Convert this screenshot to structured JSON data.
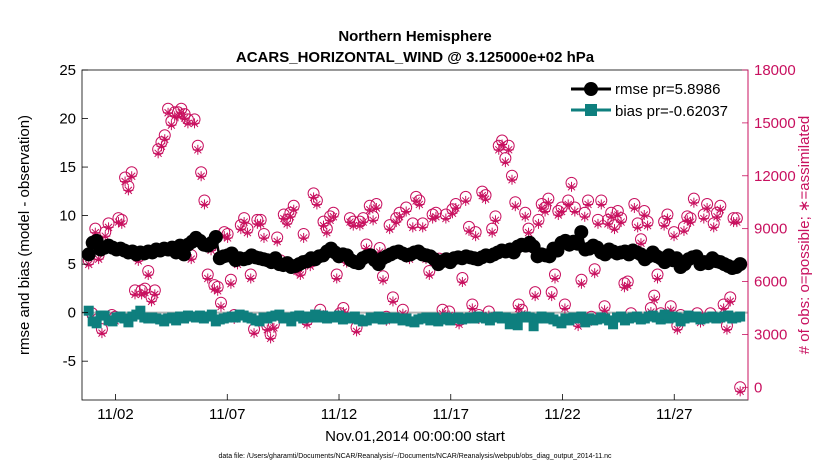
{
  "chart_data": {
    "type": "line",
    "title": "Northern Hemisphere",
    "subtitle": "ACARS_HORIZONTAL_WIND @ 3.125000e+02 hPa",
    "xlabel": "Nov.01,2014 00:00:00 start",
    "ylabel": "rmse and bias (model - observation)",
    "ylabel_right": "# of obs: o=possible; ∗=assimilated",
    "footer": "data file: /Users/gharamti/Documents/NCAR/Reanalysis/~/Documents/NCAR/Reanalysis/webpub/obs_diag_output_2014-11.nc",
    "xlim": [
      0.5,
      30.3
    ],
    "ylim": [
      -9,
      25
    ],
    "ylim_right": [
      -720,
      18000
    ],
    "x_ticks": [
      2,
      7,
      12,
      17,
      22,
      27
    ],
    "x_tick_labels": [
      "11/02",
      "11/07",
      "11/12",
      "11/17",
      "11/22",
      "11/27"
    ],
    "y_ticks": [
      -5,
      0,
      5,
      10,
      15,
      20,
      25
    ],
    "y_tick_labels": [
      "-5",
      "0",
      "5",
      "10",
      "15",
      "20",
      "25"
    ],
    "y_ticks_right": [
      0,
      3000,
      6000,
      9000,
      12000,
      15000,
      18000
    ],
    "y_tick_labels_right": [
      "0",
      "3000",
      "6000",
      "9000",
      "12000",
      "15000",
      "18000"
    ],
    "legend": [
      "rmse pr=5.8986",
      "bias pr=-0.62037"
    ],
    "colors": {
      "rmse": "#000000",
      "bias": "#0e7f7e",
      "obs": "#c8105f",
      "zero_line": "#b4b4b4"
    },
    "series": [
      {
        "name": "rmse pr=5.8986",
        "values": [
          6.0,
          7.2,
          7.4,
          6.5,
          6.7,
          6.9,
          6.7,
          6.5,
          6.6,
          6.4,
          6.2,
          6.3,
          6.0,
          6.2,
          6.1,
          6.3,
          6.2,
          6.5,
          6.4,
          6.6,
          6.5,
          6.7,
          6.2,
          6.9,
          6.0,
          7.0,
          7.3,
          7.7,
          7.4,
          7.0,
          6.9,
          7.2,
          7.8,
          5.6,
          5.8,
          5.9,
          6.1,
          5.4,
          5.6,
          5.5,
          5.6,
          5.9,
          5.7,
          5.6,
          5.5,
          5.4,
          5.2,
          5.6,
          5.0,
          4.9,
          5.1,
          4.7,
          4.8,
          5.0,
          5.2,
          5.3,
          5.6,
          5.5,
          5.8,
          5.9,
          6.3,
          6.6,
          6.2,
          5.8,
          6.0,
          5.9,
          5.4,
          5.2,
          5.1,
          5.6,
          5.8,
          5.9,
          5.4,
          5.0,
          5.6,
          5.8,
          6.0,
          6.2,
          6.3,
          6.1,
          5.9,
          6.0,
          6.2,
          6.3,
          6.0,
          5.9,
          5.8,
          5.5,
          5.0,
          5.3,
          5.5,
          5.2,
          5.6,
          5.7,
          5.6,
          5.8,
          5.7,
          5.6,
          5.5,
          5.7,
          5.9,
          5.8,
          6.0,
          6.2,
          6.4,
          6.3,
          6.5,
          6.2,
          6.8,
          7.0,
          6.9,
          7.2,
          6.8,
          5.8,
          6.0,
          5.9,
          5.8,
          6.6,
          6.4,
          7.2,
          7.4,
          7.0,
          7.3,
          7.1,
          8.3,
          6.5,
          6.6,
          6.9,
          6.7,
          6.2,
          6.0,
          6.5,
          6.3,
          6.1,
          6.2,
          6.3,
          6.0,
          6.4,
          6.2,
          6.0,
          5.5,
          5.8,
          6.2,
          5.8,
          5.6,
          5.2,
          5.9,
          5.4,
          5.6,
          4.7,
          5.0,
          5.5,
          5.7,
          5.8,
          5.0,
          5.2,
          5.1,
          5.6,
          5.3,
          5.2,
          5.0,
          4.8,
          4.6,
          4.7,
          5.0
        ]
      },
      {
        "name": "bias pr=-0.62037",
        "values": [
          0.2,
          -0.9,
          -1.1,
          -0.3,
          -0.3,
          -0.8,
          -0.9,
          -0.5,
          -0.4,
          -0.6,
          -1.0,
          -0.4,
          -0.2,
          0.2,
          -0.5,
          -0.6,
          -0.5,
          -0.6,
          -0.7,
          -0.9,
          -0.6,
          -0.5,
          -0.8,
          -0.4,
          -0.6,
          -0.3,
          -0.4,
          -0.5,
          -0.3,
          -0.6,
          -0.4,
          -0.2,
          -0.9,
          -0.7,
          -0.6,
          -0.5,
          -0.4,
          -0.5,
          -0.2,
          -0.3,
          -0.5,
          -0.6,
          -0.8,
          -0.9,
          -0.5,
          -0.6,
          -0.4,
          -0.3,
          -0.2,
          -0.6,
          -0.5,
          -0.9,
          -0.4,
          -0.3,
          -0.6,
          -0.4,
          -0.5,
          -0.2,
          -0.5,
          -0.3,
          -0.6,
          -0.4,
          -0.5,
          -0.3,
          -0.7,
          -0.5,
          -0.6,
          -0.4,
          -0.7,
          -0.9,
          -0.8,
          -0.5,
          -0.6,
          -0.4,
          -0.7,
          -0.5,
          -0.6,
          -0.5,
          -0.6,
          -0.8,
          -0.6,
          -0.9,
          -1.0,
          -0.7,
          -0.6,
          -0.5,
          -0.8,
          -0.5,
          -0.9,
          -0.7,
          -0.5,
          -0.8,
          -0.6,
          -0.5,
          -0.7,
          -0.6,
          -0.5,
          -0.6,
          -0.4,
          -0.5,
          -0.6,
          -0.8,
          -0.5,
          -0.4,
          -0.6,
          -0.5,
          -1.2,
          -0.6,
          -1.3,
          -0.5,
          -0.4,
          -0.5,
          -1.4,
          -0.6,
          -0.4,
          -0.6,
          -0.5,
          -0.7,
          -0.9,
          -1.1,
          -0.6,
          -0.8,
          -0.5,
          -0.6,
          -0.4,
          -1.0,
          -0.6,
          -0.8,
          -0.7,
          -0.5,
          -0.6,
          -0.8,
          -1.2,
          -0.5,
          -0.4,
          -0.8,
          -0.6,
          -0.5,
          -0.4,
          -0.7,
          -0.6,
          -0.4,
          -0.3,
          -0.5,
          -0.7,
          -0.2,
          -0.6,
          -0.4,
          -0.5,
          -0.9,
          -0.6,
          -0.3,
          -0.5,
          -0.4,
          -0.7,
          -0.6,
          -0.5,
          -0.4,
          -0.6,
          -0.5,
          -0.4,
          -0.3,
          -0.6,
          -0.5,
          -0.4
        ]
      }
    ],
    "obs_possible": [
      7200,
      4200,
      9000,
      7500,
      3300,
      8800,
      9300,
      4100,
      4000,
      9600,
      9500,
      11900,
      11400,
      12200,
      5500,
      7400,
      5500,
      5600,
      6600,
      5100,
      5500,
      13500,
      13900,
      14300,
      15800,
      15100,
      15600,
      15600,
      15800,
      15500,
      15200,
      7500,
      15200,
      13700,
      12200,
      10600,
      6400,
      8000,
      5800,
      5700,
      4800,
      8800,
      8700,
      6100,
      4100,
      7200,
      9200,
      9600,
      9000,
      6400,
      3300,
      9500,
      9500,
      8700,
      3500,
      3000,
      3600,
      8500,
      7200,
      9800,
      9500,
      9900,
      10300,
      6800,
      6600,
      8700,
      3800,
      7100,
      11000,
      10600,
      4400,
      9400,
      9000,
      9700,
      9900,
      6400,
      4200,
      4500,
      7300,
      9600,
      9400,
      3400,
      9400,
      9600,
      8100,
      10300,
      9700,
      10400,
      7900,
      6300,
      4000,
      9200,
      5100,
      9600,
      9900,
      4400,
      10200,
      7500,
      9300,
      10800,
      10600,
      9300,
      7500,
      6600,
      9800,
      9900,
      7300,
      4400,
      9800,
      4300,
      10100,
      10400,
      3800,
      6200,
      10800,
      9100,
      4700,
      8800,
      4100,
      11100,
      10900,
      4300,
      9000,
      9700,
      13700,
      14000,
      13000,
      13700,
      12000,
      10500,
      4700,
      4400,
      9900,
      9000,
      8100,
      5400,
      9500,
      10400,
      10200,
      10700,
      5400,
      6400,
      10000,
      10200,
      4700,
      10600,
      11600,
      10200,
      3700,
      6100,
      9900,
      10600,
      4000,
      6700,
      9500,
      10600,
      4600,
      9500,
      9900,
      9200,
      10000,
      9600,
      5900,
      6000,
      4200,
      10400,
      9300,
      8400,
      10000,
      9400,
      4500,
      5200,
      6400,
      4200,
      9400,
      9800,
      4600,
      8800,
      3500,
      4100,
      9100,
      9700,
      9600,
      10700,
      4200,
      3900,
      9800,
      10400,
      4200,
      9300,
      9900,
      10300,
      4700,
      3500,
      5100,
      9600,
      9600,
      0
    ]
  }
}
